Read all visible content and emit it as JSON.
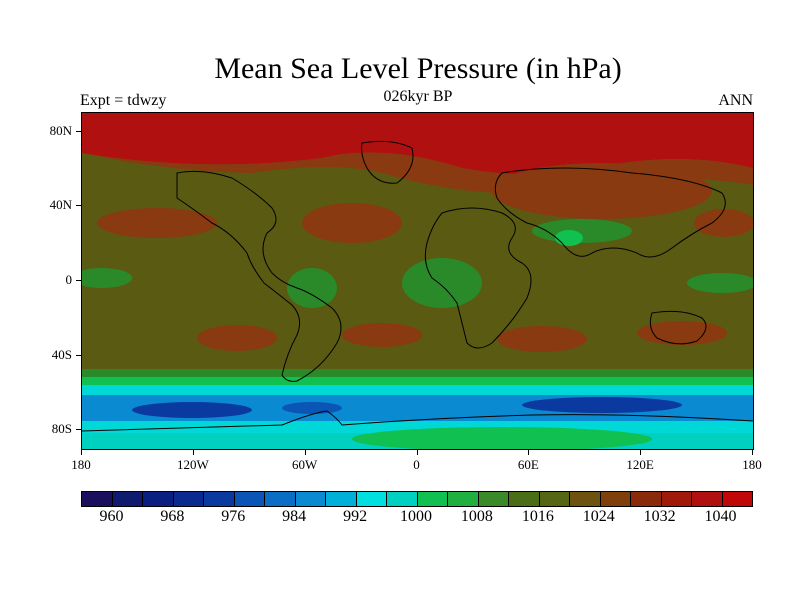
{
  "title": "Mean Sea Level Pressure (in hPa)",
  "subtitle_left": "Expt = tdwzy",
  "subtitle_center": "026kyr BP",
  "subtitle_right": "ANN",
  "lat_ticks": [
    {
      "label": "80N",
      "lat": 80
    },
    {
      "label": "40N",
      "lat": 40
    },
    {
      "label": "0",
      "lat": 0
    },
    {
      "label": "40S",
      "lat": -40
    },
    {
      "label": "80S",
      "lat": -80
    }
  ],
  "lon_ticks": [
    {
      "label": "180",
      "lon": -180
    },
    {
      "label": "120W",
      "lon": -120
    },
    {
      "label": "60W",
      "lon": -60
    },
    {
      "label": "0",
      "lon": 0
    },
    {
      "label": "60E",
      "lon": 60
    },
    {
      "label": "120E",
      "lon": 120
    },
    {
      "label": "180",
      "lon": 180
    }
  ],
  "colorbar": {
    "colors": [
      "#1a0f5c",
      "#101a6e",
      "#0a1f80",
      "#0a2a8f",
      "#0a3aa0",
      "#0a55b5",
      "#0a6ec5",
      "#0a8ad0",
      "#00b0d8",
      "#00e0e0",
      "#00d0c0",
      "#10c050",
      "#20b040",
      "#3a8a2a",
      "#4a6e18",
      "#556614",
      "#6e5210",
      "#80400c",
      "#8a2a0a",
      "#a01a0a",
      "#b01010",
      "#c00808"
    ],
    "labels": [
      "960",
      "968",
      "976",
      "984",
      "992",
      "1000",
      "1008",
      "1016",
      "1024",
      "1032",
      "1040"
    ]
  },
  "colors": {
    "high": "#b01010",
    "mid_high": "#8a3a10",
    "neutral": "#5a5a12",
    "low_green": "#2a8a2a",
    "bright_green": "#10c050",
    "cyan": "#00d8d8",
    "blue": "#0a6ec5",
    "deep_blue": "#0a3aa0"
  }
}
